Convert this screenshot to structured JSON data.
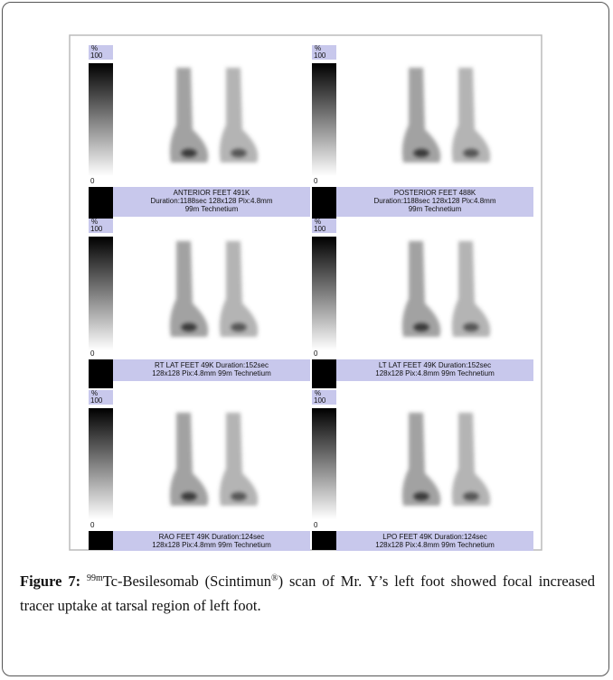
{
  "figure": {
    "panels": [
      {
        "unit": "%",
        "max": "100",
        "min": "0",
        "caption": [
          "ANTERIOR FEET 491K",
          "Duration:1188sec 128x128 Pix:4.8mm",
          "99m Technetium"
        ]
      },
      {
        "unit": "%",
        "max": "100",
        "min": "0",
        "caption": [
          "POSTERIOR FEET 488K",
          "Duration:1188sec 128x128 Pix:4.8mm",
          "99m Technetium"
        ]
      },
      {
        "unit": "%",
        "max": "100",
        "min": "0",
        "caption": [
          "RT LAT FEET 49K Duration:152sec",
          "128x128 Pix:4.8mm 99m Technetium"
        ]
      },
      {
        "unit": "%",
        "max": "100",
        "min": "0",
        "caption": [
          "LT LAT FEET 49K Duration:152sec",
          "128x128 Pix:4.8mm 99m Technetium"
        ]
      },
      {
        "unit": "%",
        "max": "100",
        "min": "0",
        "caption": [
          "RAO FEET 49K Duration:124sec",
          "128x128 Pix:4.8mm 99m Technetium"
        ]
      },
      {
        "unit": "%",
        "max": "100",
        "min": "0",
        "caption": [
          "LPO FEET 49K Duration:124sec",
          "128x128 Pix:4.8mm 99m Technetium"
        ]
      }
    ]
  },
  "figure_caption": {
    "label": "Figure 7:",
    "sup1": "99m",
    "text1": "Tc-Besilesomab (Scintimun",
    "sup2": "®",
    "text2": ") scan of Mr. Y’s left foot showed focal increased tracer uptake at tarsal region of left foot."
  }
}
